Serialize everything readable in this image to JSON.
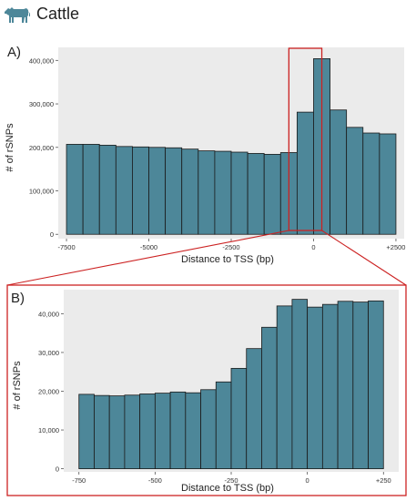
{
  "header": {
    "title": "Cattle",
    "icon": "cow-icon"
  },
  "colors": {
    "bar": "#4d8799",
    "plot_bg": "#ebebeb",
    "highlight": "#cc2222"
  },
  "chart_data": [
    {
      "type": "bar",
      "panel_label": "A)",
      "xlabel": "Distance to TSS (bp)",
      "ylabel": "# of rSNPs",
      "xlim": [
        -7750,
        2750
      ],
      "ylim": [
        -10000,
        430000
      ],
      "bin_width": 500,
      "bin_starts": [
        -7500,
        -7000,
        -6500,
        -6000,
        -5500,
        -5000,
        -4500,
        -4000,
        -3500,
        -3000,
        -2500,
        -2000,
        -1500,
        -1000,
        -500,
        0,
        500,
        1000,
        1500,
        2000
      ],
      "values": [
        207000,
        207000,
        205000,
        202000,
        201000,
        200000,
        199000,
        196000,
        192000,
        191000,
        189000,
        186000,
        184000,
        188000,
        281000,
        404000,
        286000,
        246000,
        233000,
        231000
      ],
      "x_ticks": [
        -7500,
        -5000,
        -2500,
        0,
        2500
      ],
      "x_tick_labels": [
        "-7500",
        "-5000",
        "-2500",
        "0",
        "+2500"
      ],
      "y_ticks": [
        0,
        100000,
        200000,
        300000,
        400000
      ],
      "y_tick_labels": [
        "0",
        "100,000",
        "200,000",
        "300,000",
        "400,000"
      ],
      "zoom_range": [
        -750,
        250
      ],
      "grid": false
    },
    {
      "type": "bar",
      "panel_label": "B)",
      "xlabel": "Distance to TSS (bp)",
      "ylabel": "# of rSNPs",
      "xlim": [
        -800,
        300
      ],
      "ylim": [
        -800,
        46200
      ],
      "bin_width": 50,
      "bin_starts": [
        -750,
        -700,
        -650,
        -600,
        -550,
        -500,
        -450,
        -400,
        -350,
        -300,
        -250,
        -200,
        -150,
        -100,
        -50,
        0,
        50,
        100,
        150,
        200
      ],
      "values": [
        19200,
        18900,
        18800,
        19000,
        19300,
        19500,
        19800,
        19600,
        20400,
        22400,
        25900,
        31000,
        36500,
        42000,
        43700,
        41700,
        42400,
        43200,
        43000,
        43300
      ],
      "x_ticks": [
        -750,
        -500,
        -250,
        0,
        250
      ],
      "x_tick_labels": [
        "-750",
        "-500",
        "-250",
        "0",
        "+250"
      ],
      "y_ticks": [
        0,
        10000,
        20000,
        30000,
        40000
      ],
      "y_tick_labels": [
        "0",
        "10,000",
        "20,000",
        "30,000",
        "40,000"
      ],
      "grid": false
    }
  ]
}
